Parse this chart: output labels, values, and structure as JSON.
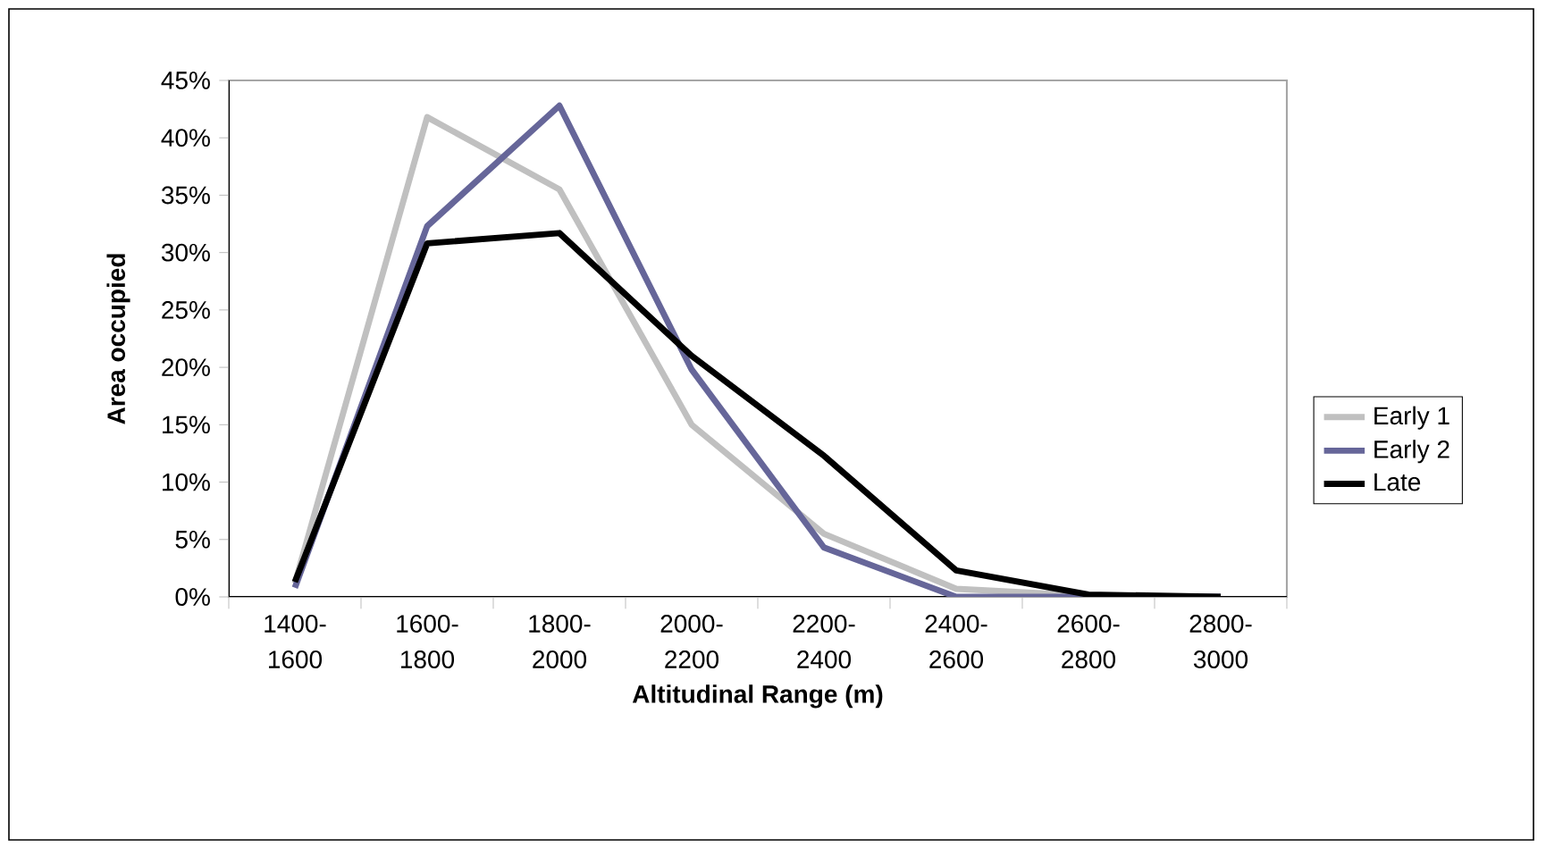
{
  "chart_data": {
    "type": "line",
    "xlabel": "Altitudinal Range (m)",
    "ylabel": "Area occupied",
    "categories": [
      "1400-1600",
      "1600-1800",
      "1800-2000",
      "2000-2200",
      "2200-2400",
      "2400-2600",
      "2600-2800",
      "2800-3000"
    ],
    "series": [
      {
        "name": "Early 1",
        "color": "#c0c0c0",
        "values": [
          1.2,
          41.8,
          35.5,
          15,
          5.5,
          0.7,
          0.1,
          0
        ]
      },
      {
        "name": "Early 2",
        "color": "#666699",
        "values": [
          0.8,
          32.3,
          42.8,
          19.8,
          4.3,
          0,
          0,
          0
        ]
      },
      {
        "name": "Late",
        "color": "#000000",
        "values": [
          1.3,
          30.8,
          31.7,
          21,
          12.3,
          2.3,
          0.2,
          0
        ]
      }
    ],
    "ylim": [
      0,
      45
    ],
    "yticks": [
      {
        "value": 0,
        "label": "0%"
      },
      {
        "value": 5,
        "label": "5%"
      },
      {
        "value": 10,
        "label": "10%"
      },
      {
        "value": 15,
        "label": "15%"
      },
      {
        "value": 20,
        "label": "20%"
      },
      {
        "value": 25,
        "label": "25%"
      },
      {
        "value": 30,
        "label": "30%"
      },
      {
        "value": 35,
        "label": "35%"
      },
      {
        "value": 40,
        "label": "40%"
      },
      {
        "value": 45,
        "label": "45%"
      }
    ],
    "legend": "right",
    "grid": false,
    "marker": "none",
    "line_style": "solid"
  }
}
